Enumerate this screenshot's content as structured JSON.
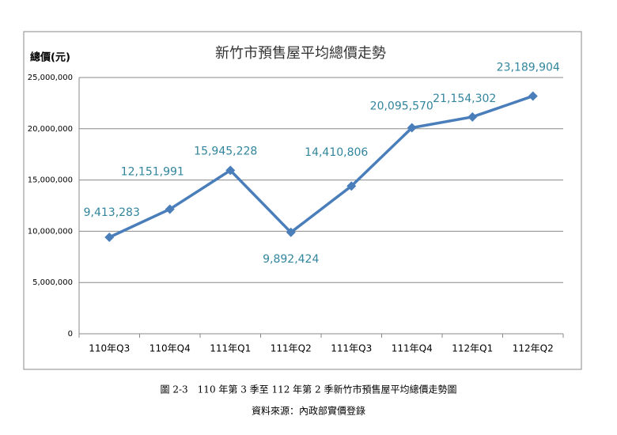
{
  "chart_data": {
    "type": "line",
    "title": "新竹市預售屋平均總價走勢",
    "y_label": "總價(元)",
    "categories": [
      "110年Q3",
      "110年Q4",
      "111年Q1",
      "111年Q2",
      "111年Q3",
      "111年Q4",
      "112年Q1",
      "112年Q2"
    ],
    "series": [
      {
        "name": "平均總價",
        "color": "#4a7ebb",
        "values": [
          9413283,
          12151991,
          15945228,
          9892424,
          14410806,
          20095570,
          21154302,
          23189904
        ],
        "value_labels": [
          "9,413,283",
          "12,151,991",
          "15,945,228",
          "9,892,424",
          "14,410,806",
          "20,095,570",
          "21,154,302",
          "23,189,904"
        ]
      }
    ],
    "ylim": [
      0,
      25000000
    ],
    "yticks": [
      0,
      {
        "value": 5000000,
        "label": "5,000,000"
      },
      {
        "value": 10000000,
        "label": "10,000,000"
      },
      {
        "value": 15000000,
        "label": "15,000,000"
      },
      {
        "value": 20000000,
        "label": "20,000,000"
      },
      {
        "value": 25000000,
        "label": "25,000,000"
      }
    ],
    "grid": true,
    "caption": "圖 2-3　110 年第 3 季至 112 年第 2 季新竹市預售屋平均總價走勢圖",
    "source": "資料來源：內政部實價登錄"
  }
}
